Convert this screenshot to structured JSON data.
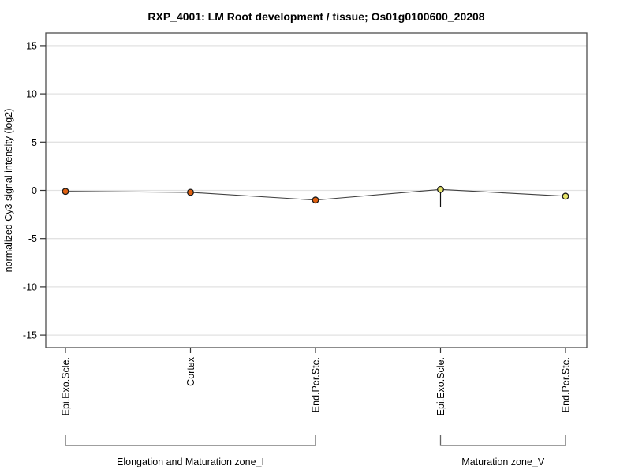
{
  "page": {
    "background": "#ffffff"
  },
  "chart_data": {
    "type": "line",
    "title": "RXP_4001: LM Root development / tissue; Os01g0100600_20208",
    "ylabel": "normalized Cy3 signal intensity (log2)",
    "xlabel": "",
    "ylim": [
      -16.3,
      16.3
    ],
    "yticks": [
      15,
      10,
      5,
      0,
      -5,
      -10,
      -15
    ],
    "grid": "horizontal-only",
    "legend": "none",
    "categories": [
      "Epi.Exo.Scle.",
      "Cortex",
      "End.Per.Ste.",
      "Epi.Exo.Scle.",
      "End.Per.Ste."
    ],
    "series": [
      {
        "name": "normalized Cy3 signal intensity",
        "values": [
          -0.1,
          -0.2,
          -1.0,
          0.1,
          -0.6
        ]
      }
    ],
    "point_colors": [
      "#E06010",
      "#E06010",
      "#E06010",
      "#E6E468",
      "#E6E468"
    ],
    "point_outline_color": "#1a1a1a",
    "error_bars": [
      null,
      null,
      null,
      {
        "low": -1.75,
        "high": 0.1
      },
      null
    ],
    "line_color": "#404040",
    "grid_color": "#e2e2e2",
    "box_color": "#4d4d4d",
    "tick_color": "#333333",
    "bracket_color": "#666666",
    "groups": [
      {
        "label": "Elongation and Maturation zone_I",
        "start_index": 0,
        "end_index": 2
      },
      {
        "label": "Maturation zone_V",
        "start_index": 3,
        "end_index": 4
      }
    ]
  }
}
